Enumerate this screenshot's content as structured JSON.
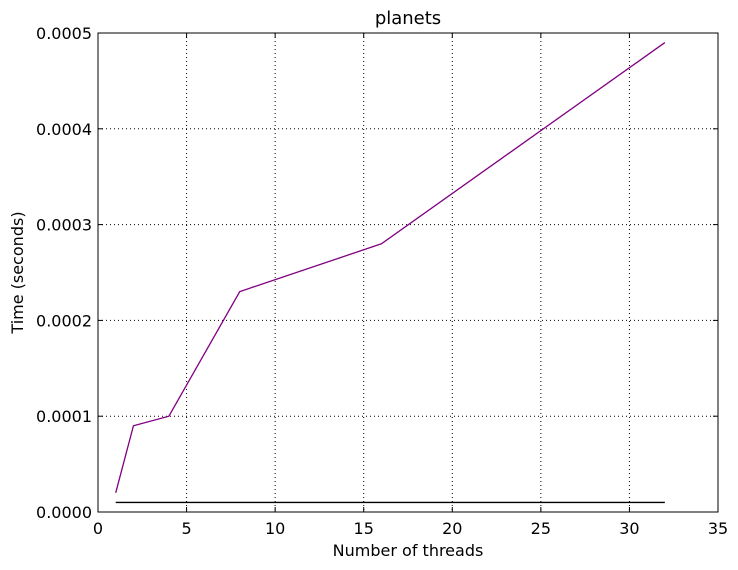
{
  "chart_data": {
    "type": "line",
    "title": "planets",
    "xlabel": "Number of threads",
    "ylabel": "Time (seconds)",
    "xlim": [
      0,
      35
    ],
    "ylim": [
      0,
      0.0005
    ],
    "xticks": [
      0,
      5,
      10,
      15,
      20,
      25,
      30,
      35
    ],
    "xtick_labels": [
      "0",
      "5",
      "10",
      "15",
      "20",
      "25",
      "30",
      "35"
    ],
    "yticks": [
      0,
      0.0001,
      0.0002,
      0.0003,
      0.0004,
      0.0005
    ],
    "ytick_labels": [
      "0.0000",
      "0.0001",
      "0.0002",
      "0.0003",
      "0.0004",
      "0.0005"
    ],
    "grid": true,
    "legend": "none",
    "series": [
      {
        "color": "#800080",
        "x": [
          1,
          2,
          4,
          8,
          16,
          32
        ],
        "y": [
          2e-05,
          9e-05,
          0.0001,
          0.00023,
          0.00028,
          0.00049
        ]
      },
      {
        "color": "#000000",
        "x": [
          1,
          32
        ],
        "y": [
          1e-05,
          1e-05
        ]
      }
    ]
  }
}
